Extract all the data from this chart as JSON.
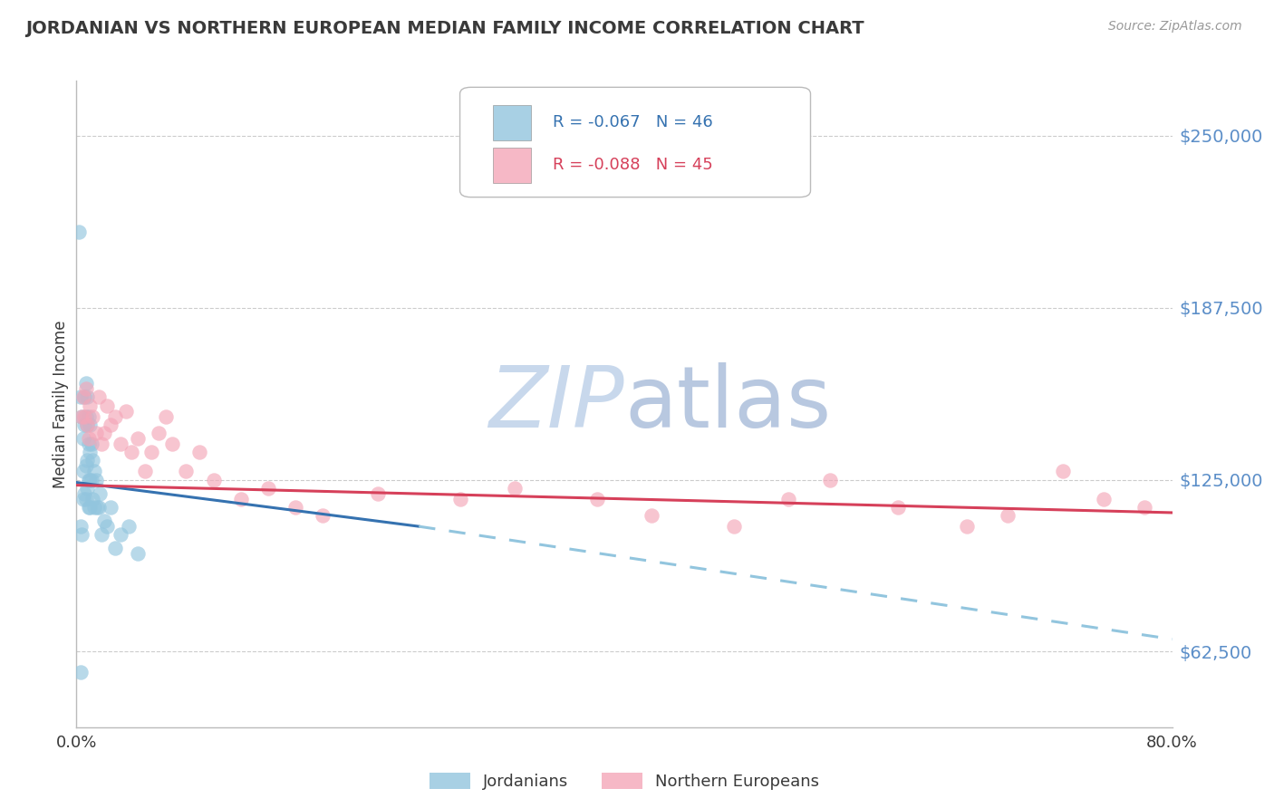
{
  "title": "JORDANIAN VS NORTHERN EUROPEAN MEDIAN FAMILY INCOME CORRELATION CHART",
  "source": "Source: ZipAtlas.com",
  "ylabel": "Median Family Income",
  "y_ticks": [
    62500,
    125000,
    187500,
    250000
  ],
  "y_tick_labels": [
    "$62,500",
    "$125,000",
    "$187,500",
    "$250,000"
  ],
  "x_min": 0.0,
  "x_max": 0.8,
  "y_min": 35000,
  "y_max": 270000,
  "jordanians_R": -0.067,
  "jordanians_N": 46,
  "northern_europeans_R": -0.088,
  "northern_europeans_N": 45,
  "blue_color": "#92c5de",
  "pink_color": "#f4a6b8",
  "blue_line_color": "#3572b0",
  "pink_line_color": "#d6405a",
  "blue_dashed_color": "#92c5de",
  "legend_label_jordanians": "Jordanians",
  "legend_label_northern": "Northern Europeans",
  "jordanians_x": [
    0.002,
    0.003,
    0.003,
    0.004,
    0.004,
    0.005,
    0.005,
    0.005,
    0.006,
    0.006,
    0.006,
    0.007,
    0.007,
    0.007,
    0.007,
    0.008,
    0.008,
    0.008,
    0.008,
    0.009,
    0.009,
    0.009,
    0.009,
    0.01,
    0.01,
    0.01,
    0.01,
    0.011,
    0.011,
    0.012,
    0.012,
    0.013,
    0.013,
    0.014,
    0.015,
    0.016,
    0.017,
    0.018,
    0.02,
    0.022,
    0.025,
    0.028,
    0.032,
    0.038,
    0.045,
    0.003
  ],
  "jordanians_y": [
    215000,
    155000,
    108000,
    148000,
    105000,
    140000,
    128000,
    118000,
    155000,
    145000,
    120000,
    160000,
    148000,
    130000,
    118000,
    155000,
    145000,
    132000,
    122000,
    148000,
    138000,
    125000,
    115000,
    145000,
    135000,
    125000,
    115000,
    138000,
    125000,
    132000,
    118000,
    128000,
    115000,
    125000,
    115000,
    115000,
    120000,
    105000,
    110000,
    108000,
    115000,
    100000,
    105000,
    108000,
    98000,
    55000
  ],
  "northern_x": [
    0.004,
    0.005,
    0.006,
    0.007,
    0.008,
    0.009,
    0.01,
    0.012,
    0.014,
    0.016,
    0.018,
    0.02,
    0.022,
    0.025,
    0.028,
    0.032,
    0.036,
    0.04,
    0.045,
    0.05,
    0.055,
    0.06,
    0.065,
    0.07,
    0.08,
    0.09,
    0.1,
    0.12,
    0.14,
    0.16,
    0.18,
    0.22,
    0.28,
    0.32,
    0.38,
    0.42,
    0.48,
    0.52,
    0.55,
    0.6,
    0.65,
    0.68,
    0.72,
    0.75,
    0.78
  ],
  "northern_y": [
    148000,
    155000,
    148000,
    158000,
    145000,
    140000,
    152000,
    148000,
    142000,
    155000,
    138000,
    142000,
    152000,
    145000,
    148000,
    138000,
    150000,
    135000,
    140000,
    128000,
    135000,
    142000,
    148000,
    138000,
    128000,
    135000,
    125000,
    118000,
    122000,
    115000,
    112000,
    120000,
    118000,
    122000,
    118000,
    112000,
    108000,
    118000,
    125000,
    115000,
    108000,
    112000,
    128000,
    118000,
    115000
  ],
  "background_color": "#ffffff",
  "grid_color": "#cccccc",
  "watermark_zip_color": "#c8d8ec",
  "watermark_atlas_color": "#b8c8e0",
  "title_color": "#3a3a3a",
  "right_tick_color": "#5b8ec8",
  "source_color": "#999999",
  "blue_trend_solid_end": 0.25
}
